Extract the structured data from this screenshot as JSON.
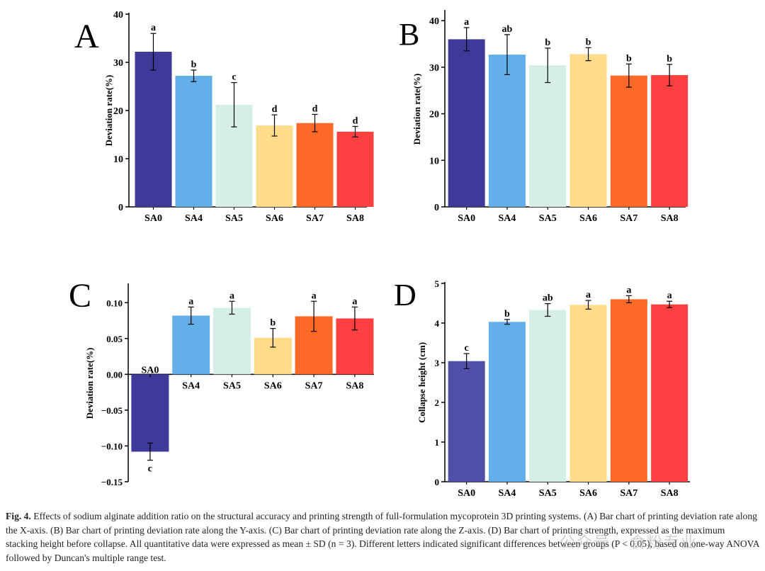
{
  "chart_data": [
    {
      "type": "bar",
      "panel_label": "A",
      "ylabel": "Deviation rate(%)",
      "ylim": [
        0,
        40
      ],
      "yticks": [
        0,
        10,
        20,
        30,
        40
      ],
      "ytick_labels": [
        "0",
        "10",
        "20",
        "30",
        "40"
      ],
      "categories": [
        "SA0",
        "SA4",
        "SA5",
        "SA6",
        "SA7",
        "SA8"
      ],
      "values": [
        32.2,
        27.2,
        21.2,
        16.9,
        17.4,
        15.6
      ],
      "errors": [
        3.8,
        1.2,
        4.6,
        2.2,
        1.8,
        1.1
      ],
      "letters": [
        "a",
        "b",
        "c",
        "d",
        "d",
        "d"
      ]
    },
    {
      "type": "bar",
      "panel_label": "B",
      "ylabel": "Deviation rate(%)",
      "ylim": [
        0,
        42
      ],
      "yticks": [
        0,
        10,
        20,
        30,
        40
      ],
      "ytick_labels": [
        "0",
        "10",
        "20",
        "30",
        "40"
      ],
      "categories": [
        "SA0",
        "SA4",
        "SA5",
        "SA6",
        "SA7",
        "SA8"
      ],
      "values": [
        36.0,
        32.7,
        30.4,
        32.8,
        28.2,
        28.3
      ],
      "errors": [
        2.5,
        4.3,
        3.7,
        1.4,
        2.5,
        2.3
      ],
      "letters": [
        "a",
        "ab",
        "b",
        "b",
        "b",
        "b"
      ]
    },
    {
      "type": "bar",
      "panel_label": "C",
      "ylabel": "Deviation rate(%)",
      "ylim": [
        -0.15,
        0.125
      ],
      "yticks": [
        -0.15,
        -0.1,
        -0.05,
        0.0,
        0.05,
        0.1
      ],
      "ytick_labels": [
        "−0.15",
        "−0.10",
        "−0.05",
        "0.00",
        "0.05",
        "0.10"
      ],
      "categories": [
        "SA0",
        "SA4",
        "SA5",
        "SA6",
        "SA7",
        "SA8"
      ],
      "values": [
        -0.108,
        0.082,
        0.093,
        0.051,
        0.081,
        0.078
      ],
      "errors": [
        0.012,
        0.012,
        0.009,
        0.013,
        0.021,
        0.016
      ],
      "letters": [
        "c",
        "a",
        "a",
        "b",
        "a",
        "a"
      ]
    },
    {
      "type": "bar",
      "panel_label": "D",
      "ylabel": "Collapse height (cm)",
      "ylim": [
        0,
        5
      ],
      "yticks": [
        0,
        1,
        2,
        3,
        4,
        5
      ],
      "ytick_labels": [
        "0",
        "1",
        "2",
        "3",
        "4",
        "5"
      ],
      "categories": [
        "SA0",
        "SA4",
        "SA5",
        "SA6",
        "SA7",
        "SA8"
      ],
      "values": [
        3.04,
        4.03,
        4.33,
        4.46,
        4.6,
        4.47
      ],
      "errors": [
        0.19,
        0.06,
        0.16,
        0.11,
        0.09,
        0.08
      ],
      "letters": [
        "c",
        "b",
        "ab",
        "a",
        "a",
        "a"
      ]
    }
  ],
  "colors": {
    "SA0": "#3d3a9a",
    "SA4": "#62aee8",
    "SA5": "#d5eee8",
    "SA6": "#fedc8a",
    "SA7": "#fd6a28",
    "SA8": "#fd4141",
    "SA0_panelD": "#5050a8",
    "axis": "#000000"
  },
  "caption": {
    "label": "Fig. 4.",
    "text": "Effects of sodium alginate addition ratio on the structural accuracy and printing strength of full-formulation mycoprotein 3D printing systems. (A) Bar chart of printing deviation rate along the X-axis. (B) Bar chart of printing deviation rate along the Y-axis. (C) Bar chart of printing deviation rate along the Z-axis. (D) Bar chart of printing strength, expressed as the maximum stacking height before collapse. All quantitative data were expressed as mean ± SD (n = 3). Different letters indicated significant differences between groups (P < 0.05), based on one-way ANOVA followed by Duncan's multiple range test."
  },
  "watermark": "公众号 · 食粉专业"
}
